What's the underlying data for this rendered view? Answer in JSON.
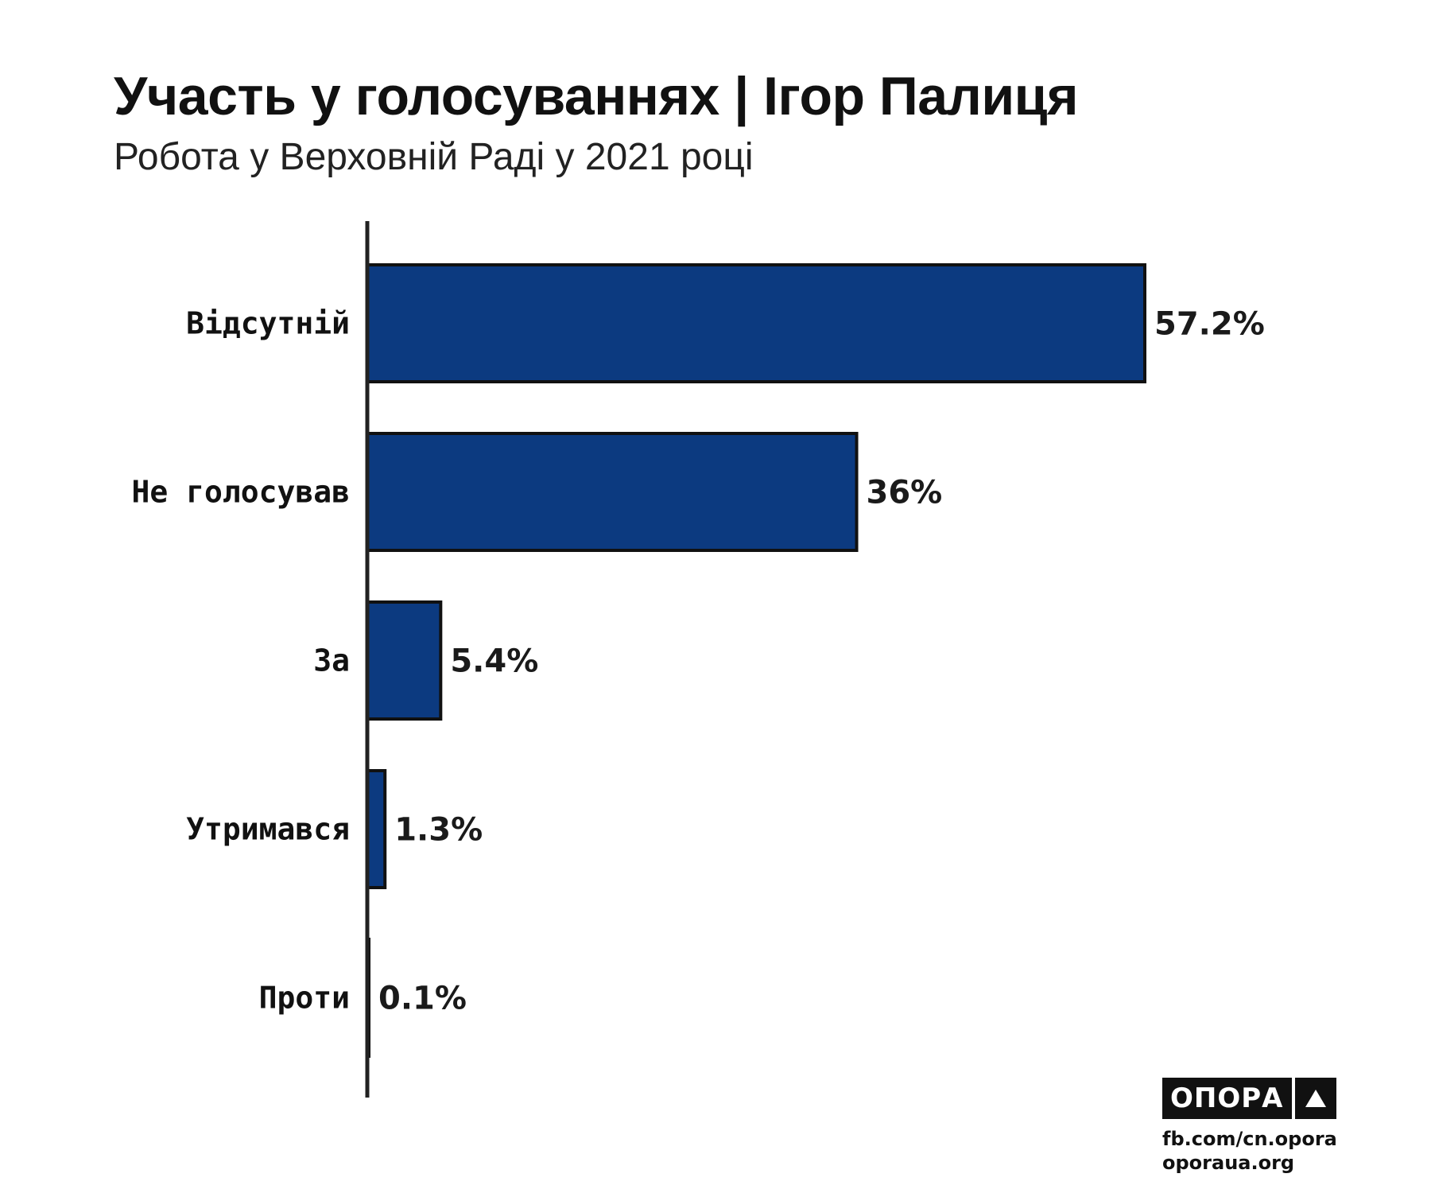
{
  "header": {
    "title": "Участь у голосуваннях | Ігор Палиця",
    "subtitle": "Робота у Верховній Раді у 2021 році"
  },
  "chart_data": {
    "type": "bar",
    "orientation": "horizontal",
    "categories": [
      "Відсутній",
      "Не голосував",
      "За",
      "Утримався",
      "Проти"
    ],
    "values": [
      57.2,
      36,
      5.4,
      1.3,
      0.1
    ],
    "value_labels": [
      "57.2%",
      "36%",
      "5.4%",
      "1.3%",
      "0.1%"
    ],
    "xlim": [
      0,
      57.2
    ],
    "grid": false,
    "legend": "none",
    "colors": {
      "bar": "#0c3a80",
      "bar_outline": "#111111",
      "axis": "#222222"
    }
  },
  "brand": {
    "name": "ОПОРА",
    "icon": "triangle-up-icon",
    "line1": "fb.com/cn.opora",
    "line2": "oporaua.org"
  }
}
